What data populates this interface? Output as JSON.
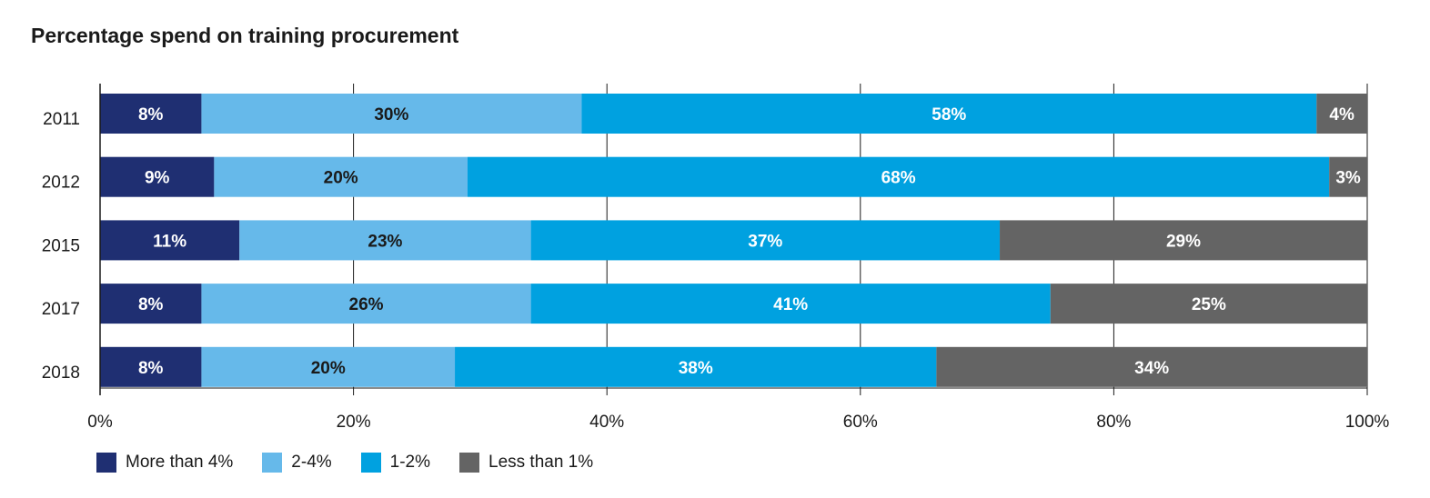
{
  "chart_data": {
    "type": "bar",
    "orientation": "horizontal",
    "stacked": true,
    "title": "Percentage spend on training procurement",
    "categories": [
      "2011",
      "2012",
      "2015",
      "2017",
      "2018"
    ],
    "series": [
      {
        "name": "More than 4%",
        "color": "#1f2f72",
        "label_color": "#ffffff",
        "values": [
          8,
          9,
          11,
          8,
          8
        ]
      },
      {
        "name": "2-4%",
        "color": "#66b9ea",
        "label_color": "#1a1a1a",
        "values": [
          30,
          20,
          23,
          26,
          20
        ]
      },
      {
        "name": "1-2%",
        "color": "#00a1e0",
        "label_color": "#ffffff",
        "values": [
          58,
          68,
          37,
          41,
          38
        ]
      },
      {
        "name": "Less than 1%",
        "color": "#646464",
        "label_color": "#ffffff",
        "values": [
          4,
          3,
          29,
          25,
          34
        ]
      }
    ],
    "data_labels": [
      [
        "8%",
        "30%",
        "58%",
        "4%"
      ],
      [
        "9%",
        "20%",
        "68%",
        "3%"
      ],
      [
        "11%",
        "23%",
        "37%",
        "29%"
      ],
      [
        "8%",
        "26%",
        "41%",
        "25%"
      ],
      [
        "8%",
        "20%",
        "38%",
        "34%"
      ]
    ],
    "xlim": [
      0,
      100
    ],
    "x_ticks": [
      0,
      20,
      40,
      60,
      80,
      100
    ],
    "x_tick_labels": [
      "0%",
      "20%",
      "40%",
      "60%",
      "80%",
      "100%"
    ],
    "grid": true,
    "legend_position": "bottom-left"
  }
}
